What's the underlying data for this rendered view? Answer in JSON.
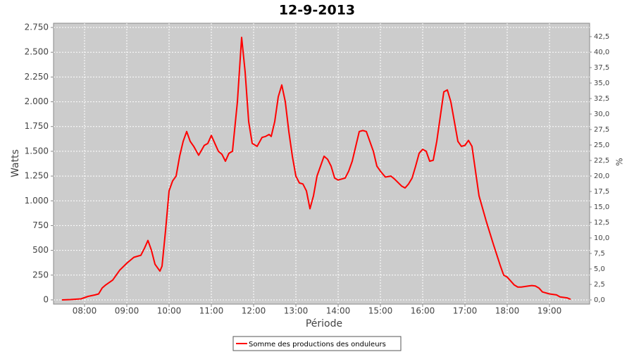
{
  "chart_data": {
    "type": "line",
    "title": "12-9-2013",
    "x_label": "Période",
    "y_label": "Watts",
    "y2_label": "%",
    "x": [
      "07:28",
      "07:40",
      "07:55",
      "08:05",
      "08:15",
      "08:20",
      "08:25",
      "08:30",
      "08:40",
      "08:50",
      "09:00",
      "09:10",
      "09:15",
      "09:20",
      "09:25",
      "09:30",
      "09:35",
      "09:40",
      "09:47",
      "09:50",
      "09:55",
      "10:00",
      "10:05",
      "10:10",
      "10:15",
      "10:20",
      "10:25",
      "10:30",
      "10:35",
      "10:42",
      "10:50",
      "10:55",
      "11:00",
      "11:05",
      "11:10",
      "11:15",
      "11:20",
      "11:25",
      "11:30",
      "11:37",
      "11:43",
      "11:48",
      "11:53",
      "11:58",
      "12:05",
      "12:12",
      "12:17",
      "12:22",
      "12:25",
      "12:30",
      "12:35",
      "12:40",
      "12:45",
      "12:50",
      "12:55",
      "13:00",
      "13:05",
      "13:10",
      "13:15",
      "13:20",
      "13:25",
      "13:30",
      "13:35",
      "13:40",
      "13:45",
      "13:50",
      "13:55",
      "14:00",
      "14:05",
      "14:10",
      "14:15",
      "14:20",
      "14:25",
      "14:30",
      "14:35",
      "14:40",
      "14:45",
      "14:50",
      "14:55",
      "15:00",
      "15:07",
      "15:15",
      "15:20",
      "15:30",
      "15:35",
      "15:40",
      "15:45",
      "15:50",
      "15:55",
      "16:00",
      "16:05",
      "16:10",
      "16:15",
      "16:20",
      "16:25",
      "16:30",
      "16:35",
      "16:40",
      "16:45",
      "16:50",
      "16:55",
      "17:00",
      "17:05",
      "17:10",
      "17:15",
      "17:20",
      "17:30",
      "17:40",
      "17:50",
      "17:55",
      "18:00",
      "18:05",
      "18:10",
      "18:15",
      "18:20",
      "18:30",
      "18:35",
      "18:40",
      "18:45",
      "18:50",
      "19:00",
      "19:10",
      "19:15",
      "19:25",
      "19:30"
    ],
    "series": [
      {
        "name": "Somme des productions des onduleurs",
        "color": "#ff0000",
        "values": [
          0,
          3,
          10,
          35,
          50,
          60,
          120,
          150,
          200,
          300,
          370,
          430,
          440,
          450,
          520,
          600,
          500,
          360,
          290,
          340,
          700,
          1100,
          1200,
          1250,
          1450,
          1600,
          1700,
          1600,
          1550,
          1460,
          1560,
          1580,
          1660,
          1580,
          1500,
          1470,
          1400,
          1480,
          1500,
          2000,
          2650,
          2300,
          1800,
          1580,
          1550,
          1640,
          1650,
          1670,
          1650,
          1800,
          2050,
          2170,
          2000,
          1700,
          1450,
          1250,
          1180,
          1170,
          1100,
          920,
          1050,
          1250,
          1350,
          1450,
          1420,
          1350,
          1230,
          1210,
          1220,
          1230,
          1300,
          1400,
          1550,
          1700,
          1710,
          1700,
          1600,
          1500,
          1350,
          1300,
          1240,
          1250,
          1220,
          1150,
          1130,
          1170,
          1230,
          1350,
          1480,
          1520,
          1500,
          1400,
          1410,
          1600,
          1850,
          2100,
          2120,
          2000,
          1800,
          1600,
          1550,
          1560,
          1610,
          1550,
          1300,
          1050,
          800,
          570,
          350,
          250,
          230,
          190,
          150,
          130,
          130,
          140,
          145,
          140,
          120,
          80,
          60,
          50,
          30,
          20,
          5
        ]
      }
    ],
    "xlim": [
      "07:16",
      "19:57"
    ],
    "xticks": [
      "08:00",
      "09:00",
      "10:00",
      "11:00",
      "12:00",
      "13:00",
      "14:00",
      "15:00",
      "16:00",
      "17:00",
      "18:00",
      "19:00"
    ],
    "ylim": [
      -43,
      2793
    ],
    "yticks": [
      0,
      250,
      500,
      750,
      {
        "value": 1000,
        "label": "1.000"
      },
      {
        "value": 1250,
        "label": "1.250"
      },
      {
        "value": 1500,
        "label": "1.500"
      },
      {
        "value": 1750,
        "label": "1.750"
      },
      {
        "value": 2000,
        "label": "2.000"
      },
      {
        "value": 2250,
        "label": "2.250"
      },
      {
        "value": 2500,
        "label": "2.500"
      },
      {
        "value": 2750,
        "label": "2.750"
      }
    ],
    "y2lim": [
      -0.68,
      44.66
    ],
    "y2ticks": [
      {
        "value": 0,
        "label": "0,0"
      },
      {
        "value": 2.5,
        "label": "2,5"
      },
      {
        "value": 5,
        "label": "5,0"
      },
      {
        "value": 7.5,
        "label": "7,5"
      },
      {
        "value": 10,
        "label": "10,0"
      },
      {
        "value": 12.5,
        "label": "12,5"
      },
      {
        "value": 15,
        "label": "15,0"
      },
      {
        "value": 17.5,
        "label": "17,5"
      },
      {
        "value": 20,
        "label": "20,0"
      },
      {
        "value": 22.5,
        "label": "22,5"
      },
      {
        "value": 25,
        "label": "25,0"
      },
      {
        "value": 27.5,
        "label": "27,5"
      },
      {
        "value": 30,
        "label": "30,0"
      },
      {
        "value": 32.5,
        "label": "32,5"
      },
      {
        "value": 35,
        "label": "35,0"
      },
      {
        "value": 37.5,
        "label": "37,5"
      },
      {
        "value": 40,
        "label": "40,0"
      },
      {
        "value": 42.5,
        "label": "42,5"
      }
    ],
    "grid": true,
    "background": "#cccccc",
    "legend": "bottom"
  }
}
